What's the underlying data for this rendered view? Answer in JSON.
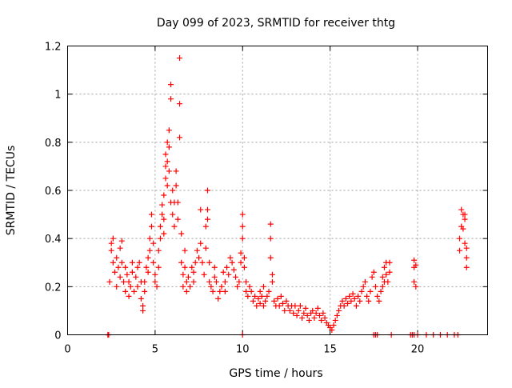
{
  "chart_data": {
    "type": "scatter",
    "title": "Day 099 of 2023, SRMTID for receiver thtg",
    "xlabel": "GPS time / hours",
    "ylabel": "SRMTID / TECUs",
    "xlim": [
      0,
      24
    ],
    "ylim": [
      0,
      1.2
    ],
    "x_ticks": [
      0,
      5,
      10,
      15,
      20
    ],
    "x_tick_labels": [
      "0",
      "5",
      "10",
      "15",
      "20"
    ],
    "y_ticks": [
      0,
      0.2,
      0.4,
      0.6,
      0.8,
      1.0,
      1.2
    ],
    "y_tick_labels": [
      "0",
      "0.2",
      "0.4",
      "0.6",
      "0.8",
      "1",
      "1.2"
    ],
    "grid": true,
    "marker": "+",
    "series": [
      {
        "name": "SRMTID",
        "color": "#ff0000",
        "points": [
          [
            2.4,
            0.22
          ],
          [
            2.5,
            0.35
          ],
          [
            2.5,
            0.38
          ],
          [
            2.6,
            0.3
          ],
          [
            2.6,
            0.4
          ],
          [
            2.7,
            0.26
          ],
          [
            2.8,
            0.32
          ],
          [
            2.8,
            0.2
          ],
          [
            2.9,
            0.28
          ],
          [
            3.0,
            0.36
          ],
          [
            3.0,
            0.24
          ],
          [
            3.1,
            0.39
          ],
          [
            3.1,
            0.3
          ],
          [
            3.2,
            0.22
          ],
          [
            3.3,
            0.28
          ],
          [
            3.3,
            0.18
          ],
          [
            3.4,
            0.25
          ],
          [
            3.5,
            0.16
          ],
          [
            3.5,
            0.22
          ],
          [
            3.6,
            0.2
          ],
          [
            3.7,
            0.26
          ],
          [
            3.7,
            0.3
          ],
          [
            3.8,
            0.18
          ],
          [
            3.9,
            0.24
          ],
          [
            4.0,
            0.28
          ],
          [
            4.0,
            0.2
          ],
          [
            4.1,
            0.3
          ],
          [
            4.2,
            0.22
          ],
          [
            4.2,
            0.15
          ],
          [
            4.3,
            0.12
          ],
          [
            4.3,
            0.1
          ],
          [
            4.4,
            0.18
          ],
          [
            4.4,
            0.22
          ],
          [
            4.5,
            0.28
          ],
          [
            4.6,
            0.26
          ],
          [
            4.6,
            0.32
          ],
          [
            4.7,
            0.35
          ],
          [
            4.7,
            0.4
          ],
          [
            4.8,
            0.45
          ],
          [
            4.8,
            0.5
          ],
          [
            4.9,
            0.38
          ],
          [
            4.9,
            0.3
          ],
          [
            5.0,
            0.25
          ],
          [
            5.0,
            0.22
          ],
          [
            5.1,
            0.2
          ],
          [
            5.2,
            0.28
          ],
          [
            5.2,
            0.35
          ],
          [
            5.3,
            0.4
          ],
          [
            5.3,
            0.45
          ],
          [
            5.4,
            0.5
          ],
          [
            5.4,
            0.54
          ],
          [
            5.5,
            0.48
          ],
          [
            5.5,
            0.42
          ],
          [
            5.5,
            0.58
          ],
          [
            5.6,
            0.65
          ],
          [
            5.6,
            0.7
          ],
          [
            5.6,
            0.75
          ],
          [
            5.7,
            0.8
          ],
          [
            5.7,
            0.72
          ],
          [
            5.7,
            0.62
          ],
          [
            5.8,
            0.85
          ],
          [
            5.8,
            0.78
          ],
          [
            5.8,
            0.68
          ],
          [
            5.9,
            0.55
          ],
          [
            5.9,
            0.98
          ],
          [
            5.9,
            1.04
          ],
          [
            6.0,
            0.6
          ],
          [
            6.0,
            0.5
          ],
          [
            6.1,
            0.45
          ],
          [
            6.1,
            0.55
          ],
          [
            6.2,
            0.68
          ],
          [
            6.2,
            0.62
          ],
          [
            6.3,
            0.55
          ],
          [
            6.3,
            0.48
          ],
          [
            6.4,
            0.96
          ],
          [
            6.4,
            0.82
          ],
          [
            6.4,
            1.15
          ],
          [
            6.5,
            0.42
          ],
          [
            6.5,
            0.3
          ],
          [
            6.6,
            0.25
          ],
          [
            6.6,
            0.2
          ],
          [
            6.7,
            0.35
          ],
          [
            6.7,
            0.28
          ],
          [
            6.8,
            0.22
          ],
          [
            6.8,
            0.18
          ],
          [
            6.9,
            0.24
          ],
          [
            7.0,
            0.2
          ],
          [
            7.1,
            0.28
          ],
          [
            7.2,
            0.26
          ],
          [
            7.2,
            0.22
          ],
          [
            7.3,
            0.3
          ],
          [
            7.4,
            0.35
          ],
          [
            7.5,
            0.32
          ],
          [
            7.6,
            0.52
          ],
          [
            7.6,
            0.38
          ],
          [
            7.7,
            0.3
          ],
          [
            7.8,
            0.25
          ],
          [
            7.9,
            0.45
          ],
          [
            7.9,
            0.36
          ],
          [
            8.0,
            0.6
          ],
          [
            8.0,
            0.52
          ],
          [
            8.0,
            0.48
          ],
          [
            8.1,
            0.3
          ],
          [
            8.1,
            0.22
          ],
          [
            8.2,
            0.2
          ],
          [
            8.3,
            0.18
          ],
          [
            8.4,
            0.28
          ],
          [
            8.4,
            0.24
          ],
          [
            8.5,
            0.22
          ],
          [
            8.6,
            0.15
          ],
          [
            8.7,
            0.18
          ],
          [
            8.8,
            0.2
          ],
          [
            8.9,
            0.26
          ],
          [
            9.0,
            0.22
          ],
          [
            9.0,
            0.18
          ],
          [
            9.1,
            0.28
          ],
          [
            9.2,
            0.25
          ],
          [
            9.3,
            0.32
          ],
          [
            9.4,
            0.3
          ],
          [
            9.5,
            0.27
          ],
          [
            9.6,
            0.24
          ],
          [
            9.7,
            0.2
          ],
          [
            9.8,
            0.22
          ],
          [
            9.9,
            0.3
          ],
          [
            9.9,
            0.34
          ],
          [
            10.0,
            0.5
          ],
          [
            10.0,
            0.45
          ],
          [
            10.0,
            0.4
          ],
          [
            10.1,
            0.32
          ],
          [
            10.1,
            0.28
          ],
          [
            10.2,
            0.22
          ],
          [
            10.2,
            0.18
          ],
          [
            10.3,
            0.16
          ],
          [
            10.4,
            0.2
          ],
          [
            10.5,
            0.18
          ],
          [
            10.6,
            0.14
          ],
          [
            10.7,
            0.16
          ],
          [
            10.8,
            0.12
          ],
          [
            10.9,
            0.15
          ],
          [
            11.0,
            0.18
          ],
          [
            11.0,
            0.13
          ],
          [
            11.1,
            0.16
          ],
          [
            11.2,
            0.12
          ],
          [
            11.2,
            0.2
          ],
          [
            11.3,
            0.14
          ],
          [
            11.4,
            0.16
          ],
          [
            11.5,
            0.18
          ],
          [
            11.6,
            0.46
          ],
          [
            11.6,
            0.4
          ],
          [
            11.6,
            0.32
          ],
          [
            11.7,
            0.25
          ],
          [
            11.7,
            0.22
          ],
          [
            11.8,
            0.14
          ],
          [
            11.9,
            0.12
          ],
          [
            12.0,
            0.15
          ],
          [
            12.1,
            0.12
          ],
          [
            12.2,
            0.16
          ],
          [
            12.3,
            0.13
          ],
          [
            12.4,
            0.1
          ],
          [
            12.5,
            0.14
          ],
          [
            12.6,
            0.12
          ],
          [
            12.7,
            0.1
          ],
          [
            12.8,
            0.12
          ],
          [
            12.9,
            0.09
          ],
          [
            13.0,
            0.12
          ],
          [
            13.1,
            0.08
          ],
          [
            13.2,
            0.1
          ],
          [
            13.3,
            0.12
          ],
          [
            13.4,
            0.07
          ],
          [
            13.5,
            0.09
          ],
          [
            13.6,
            0.11
          ],
          [
            13.7,
            0.08
          ],
          [
            13.8,
            0.06
          ],
          [
            13.9,
            0.09
          ],
          [
            14.0,
            0.1
          ],
          [
            14.1,
            0.07
          ],
          [
            14.2,
            0.09
          ],
          [
            14.3,
            0.11
          ],
          [
            14.4,
            0.08
          ],
          [
            14.5,
            0.06
          ],
          [
            14.6,
            0.09
          ],
          [
            14.7,
            0.07
          ],
          [
            14.8,
            0.05
          ],
          [
            14.9,
            0.04
          ],
          [
            15.0,
            0.03
          ],
          [
            15.1,
            0.02
          ],
          [
            15.2,
            0.04
          ],
          [
            15.3,
            0.06
          ],
          [
            15.4,
            0.08
          ],
          [
            15.5,
            0.1
          ],
          [
            15.6,
            0.12
          ],
          [
            15.7,
            0.14
          ],
          [
            15.8,
            0.12
          ],
          [
            15.9,
            0.15
          ],
          [
            16.0,
            0.13
          ],
          [
            16.1,
            0.16
          ],
          [
            16.2,
            0.14
          ],
          [
            16.3,
            0.17
          ],
          [
            16.4,
            0.15
          ],
          [
            16.5,
            0.12
          ],
          [
            16.6,
            0.16
          ],
          [
            16.7,
            0.14
          ],
          [
            16.8,
            0.18
          ],
          [
            16.9,
            0.2
          ],
          [
            17.0,
            0.22
          ],
          [
            17.1,
            0.16
          ],
          [
            17.2,
            0.14
          ],
          [
            17.3,
            0.18
          ],
          [
            17.4,
            0.24
          ],
          [
            17.5,
            0.26
          ],
          [
            17.6,
            0.2
          ],
          [
            17.7,
            0.16
          ],
          [
            17.8,
            0.14
          ],
          [
            17.9,
            0.18
          ],
          [
            18.0,
            0.2
          ],
          [
            18.0,
            0.24
          ],
          [
            18.1,
            0.28
          ],
          [
            18.1,
            0.22
          ],
          [
            18.2,
            0.3
          ],
          [
            18.2,
            0.25
          ],
          [
            18.3,
            0.22
          ],
          [
            18.4,
            0.26
          ],
          [
            18.4,
            0.3
          ],
          [
            19.8,
            0.31
          ],
          [
            19.8,
            0.28
          ],
          [
            19.8,
            0.22
          ],
          [
            19.9,
            0.29
          ],
          [
            19.9,
            0.2
          ],
          [
            22.4,
            0.35
          ],
          [
            22.4,
            0.4
          ],
          [
            22.5,
            0.45
          ],
          [
            22.5,
            0.52
          ],
          [
            22.6,
            0.5
          ],
          [
            22.6,
            0.44
          ],
          [
            22.7,
            0.48
          ],
          [
            22.7,
            0.5
          ],
          [
            22.7,
            0.38
          ],
          [
            22.8,
            0.32
          ],
          [
            22.8,
            0.28
          ],
          [
            22.8,
            0.36
          ],
          [
            2.3,
            0.0
          ],
          [
            2.35,
            0.0
          ],
          [
            17.5,
            0.0
          ],
          [
            17.6,
            0.0
          ],
          [
            17.7,
            0.0
          ],
          [
            18.5,
            0.0
          ],
          [
            19.6,
            0.0
          ],
          [
            19.7,
            0.0
          ],
          [
            19.8,
            0.0
          ],
          [
            20.0,
            0.0
          ],
          [
            20.5,
            0.0
          ],
          [
            20.9,
            0.0
          ],
          [
            21.3,
            0.0
          ],
          [
            21.7,
            0.0
          ],
          [
            22.1,
            0.0
          ],
          [
            22.3,
            0.0
          ],
          [
            10.0,
            0.0
          ]
        ]
      }
    ]
  }
}
